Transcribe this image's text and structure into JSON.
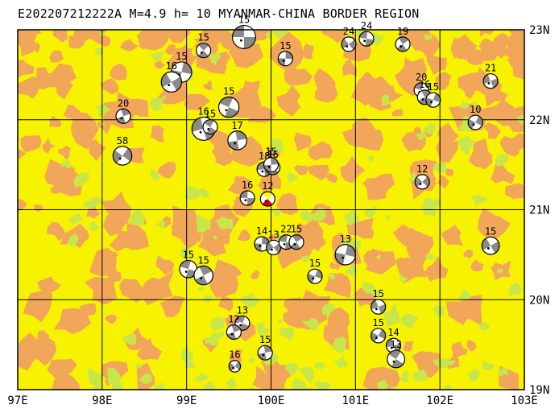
{
  "title": "E202207212222A M=4.9 h= 10 MYANMAR-CHINA BORDER REGION",
  "map": {
    "lon_range": [
      97,
      103
    ],
    "lat_range": [
      19,
      23
    ],
    "lon_labels": [
      "97E",
      "98E",
      "99E",
      "100E",
      "101E",
      "102E",
      "103E"
    ],
    "lat_labels": [
      "23N",
      "22N",
      "21N",
      "20N",
      "19N"
    ],
    "colors": {
      "terrain_yellow": "#f6f200",
      "terrain_orange": "#f2a65a",
      "terrain_green": "#c8e64a",
      "grid": "#000000",
      "mechanism_fill": "#ffffff",
      "mechanism_dark": "#8a8a8a",
      "main_event_color": "#e00000",
      "main_event_yellow": "#ffff00"
    }
  },
  "mechanisms": [
    {
      "label": "15",
      "lon": 99.68,
      "lat": 22.92,
      "size": 1.6
    },
    {
      "label": "15",
      "lon": 99.2,
      "lat": 22.77
    },
    {
      "label": "15",
      "lon": 100.17,
      "lat": 22.68
    },
    {
      "label": "24",
      "lon": 100.92,
      "lat": 22.84
    },
    {
      "label": "24",
      "lon": 101.13,
      "lat": 22.9
    },
    {
      "label": "19",
      "lon": 101.56,
      "lat": 22.84
    },
    {
      "label": "15",
      "lon": 98.94,
      "lat": 22.53,
      "size": 1.4
    },
    {
      "label": "16",
      "lon": 98.82,
      "lat": 22.42,
      "size": 1.4
    },
    {
      "label": "20",
      "lon": 101.78,
      "lat": 22.33
    },
    {
      "label": "16",
      "lon": 101.82,
      "lat": 22.25
    },
    {
      "label": "15",
      "lon": 101.92,
      "lat": 22.22
    },
    {
      "label": "21",
      "lon": 102.6,
      "lat": 22.43
    },
    {
      "label": "15",
      "lon": 99.5,
      "lat": 22.14,
      "size": 1.4
    },
    {
      "label": "20",
      "lon": 98.25,
      "lat": 22.04
    },
    {
      "label": "10",
      "lon": 102.42,
      "lat": 21.97
    },
    {
      "label": "16",
      "lon": 99.2,
      "lat": 21.9,
      "size": 1.6
    },
    {
      "label": "15",
      "lon": 99.28,
      "lat": 21.92
    },
    {
      "label": "17",
      "lon": 99.6,
      "lat": 21.77,
      "size": 1.3
    },
    {
      "label": "58",
      "lon": 98.24,
      "lat": 21.6,
      "size": 1.3
    },
    {
      "label": "18",
      "lon": 99.92,
      "lat": 21.45
    },
    {
      "label": "16",
      "lon": 100.02,
      "lat": 21.47
    },
    {
      "label": "15",
      "lon": 100.0,
      "lat": 21.5
    },
    {
      "label": "12",
      "lon": 101.79,
      "lat": 21.31
    },
    {
      "label": "16",
      "lon": 99.72,
      "lat": 21.13
    },
    {
      "label": "12",
      "lon": 99.96,
      "lat": 21.12,
      "main": true
    },
    {
      "label": "14",
      "lon": 99.89,
      "lat": 20.62
    },
    {
      "label": "13",
      "lon": 100.03,
      "lat": 20.58
    },
    {
      "label": "22",
      "lon": 100.18,
      "lat": 20.64
    },
    {
      "label": "15",
      "lon": 100.3,
      "lat": 20.64
    },
    {
      "label": "13",
      "lon": 100.88,
      "lat": 20.5,
      "size": 1.4
    },
    {
      "label": "15",
      "lon": 102.6,
      "lat": 20.6,
      "size": 1.2
    },
    {
      "label": "15",
      "lon": 99.02,
      "lat": 20.34,
      "size": 1.2
    },
    {
      "label": "15",
      "lon": 99.2,
      "lat": 20.27,
      "size": 1.3
    },
    {
      "label": "15",
      "lon": 100.52,
      "lat": 20.26
    },
    {
      "label": "15",
      "lon": 101.27,
      "lat": 19.92
    },
    {
      "label": "13",
      "lon": 99.66,
      "lat": 19.74
    },
    {
      "label": "12",
      "lon": 99.56,
      "lat": 19.64
    },
    {
      "label": "15",
      "lon": 101.27,
      "lat": 19.6
    },
    {
      "label": "14",
      "lon": 101.45,
      "lat": 19.49
    },
    {
      "label": "13",
      "lon": 101.48,
      "lat": 19.34,
      "size": 1.2
    },
    {
      "label": "15",
      "lon": 99.93,
      "lat": 19.41
    },
    {
      "label": "16",
      "lon": 99.57,
      "lat": 19.26,
      "size": 0.8
    }
  ]
}
